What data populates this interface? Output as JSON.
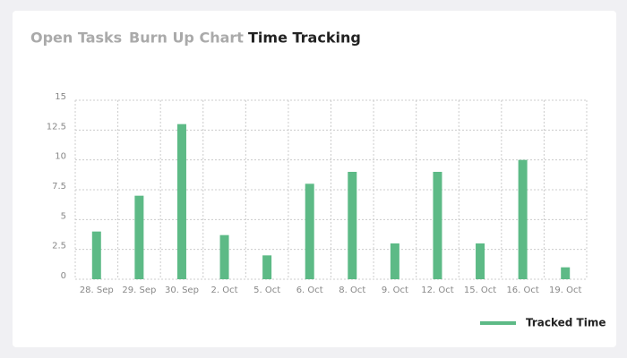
{
  "tabs": [
    {
      "label": "Open Tasks",
      "active": false
    },
    {
      "label": "Burn Up Chart",
      "active": false
    },
    {
      "label": "Time Tracking",
      "active": true
    }
  ],
  "chart_data": {
    "type": "bar",
    "categories": [
      "28. Sep",
      "29. Sep",
      "30. Sep",
      "2. Oct",
      "5. Oct",
      "6. Oct",
      "8. Oct",
      "9. Oct",
      "12. Oct",
      "15. Oct",
      "16. Oct",
      "19. Oct"
    ],
    "series": [
      {
        "name": "Tracked Time",
        "color": "#5dba86",
        "values": [
          4,
          7,
          13,
          3.7,
          2,
          8,
          9,
          3,
          9,
          3,
          10,
          1
        ]
      }
    ],
    "ylim": [
      0,
      15
    ],
    "yticks": [
      0,
      2.5,
      5,
      7.5,
      10,
      12.5,
      15
    ],
    "grid": true,
    "legend": "bottom-right"
  }
}
